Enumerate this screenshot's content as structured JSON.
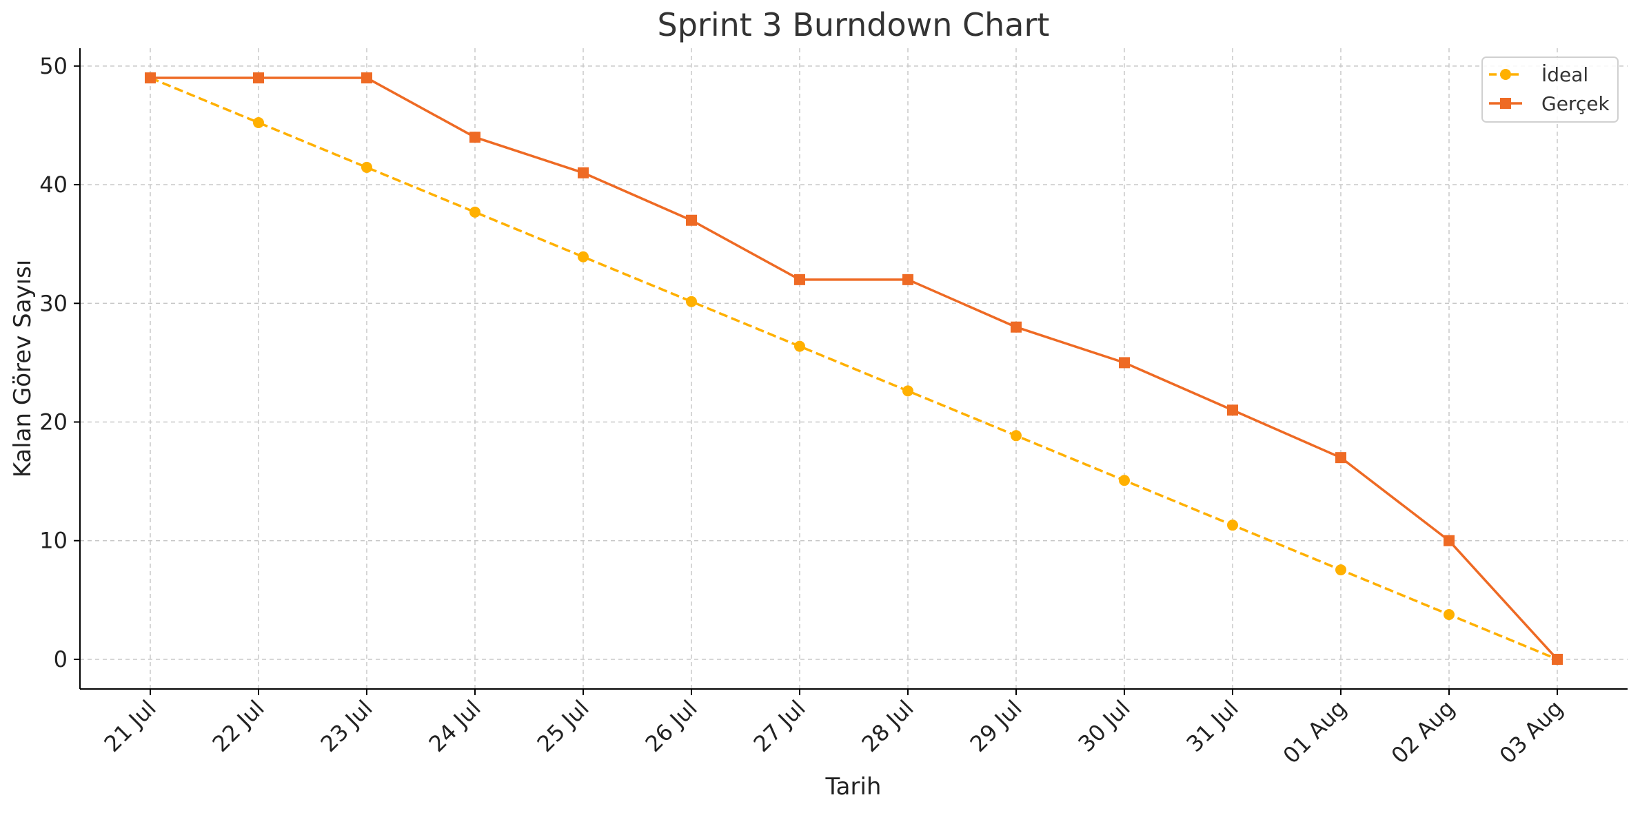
{
  "chart_data": {
    "type": "line",
    "title": "Sprint 3 Burndown Chart",
    "xlabel": "Tarih",
    "ylabel": "Kalan Görev Sayısı",
    "categories": [
      "21 Jul",
      "22 Jul",
      "23 Jul",
      "24 Jul",
      "25 Jul",
      "26 Jul",
      "27 Jul",
      "28 Jul",
      "29 Jul",
      "30 Jul",
      "31 Jul",
      "01 Aug",
      "02 Aug",
      "03 Aug"
    ],
    "ylim": [
      -2.5,
      51.5
    ],
    "yticks": [
      0,
      10,
      20,
      30,
      40,
      50
    ],
    "grid": true,
    "legend_position": "top-right",
    "series": [
      {
        "name": "İdeal",
        "color": "#FFB000",
        "line_style": "dashed",
        "marker": "circle",
        "values": [
          49,
          45.23,
          41.46,
          37.69,
          33.92,
          30.15,
          26.38,
          22.62,
          18.85,
          15.08,
          11.31,
          7.54,
          3.77,
          0
        ]
      },
      {
        "name": "Gerçek",
        "color": "#EE6A24",
        "line_style": "solid",
        "marker": "square",
        "values": [
          49,
          49,
          49,
          44,
          41,
          37,
          32,
          32,
          28,
          25,
          21,
          17,
          10,
          0
        ]
      }
    ]
  }
}
